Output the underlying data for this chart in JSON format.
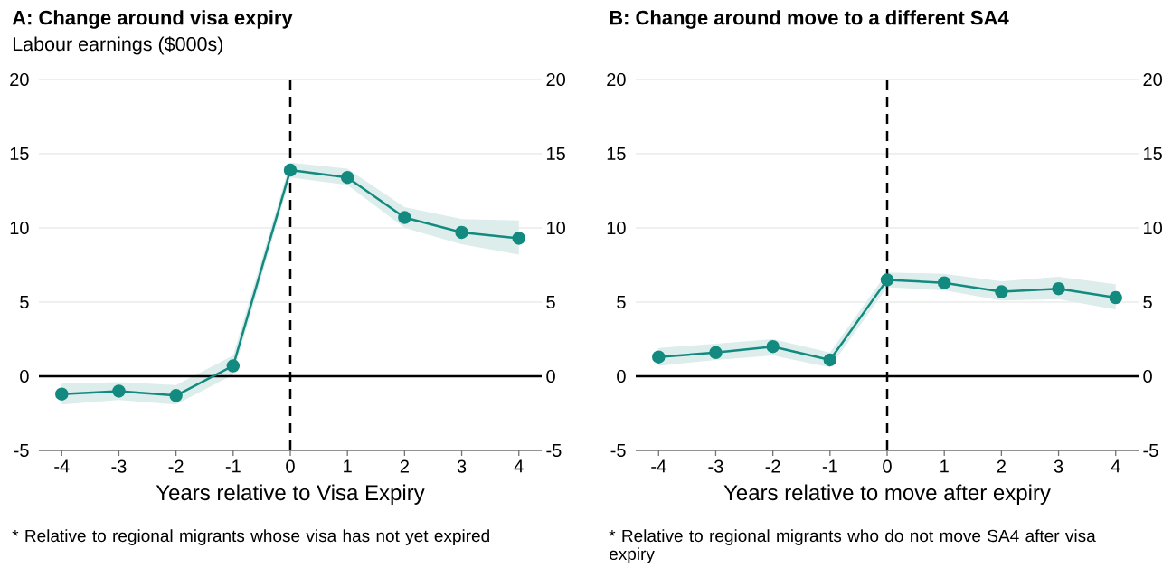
{
  "chart_data": [
    {
      "type": "line",
      "title": "A: Change around visa expiry",
      "ylabel": "Labour earnings ($000s)",
      "xlabel": "Years relative to Visa Expiry",
      "x": [
        -4,
        -3,
        -2,
        -1,
        0,
        1,
        2,
        3,
        4
      ],
      "series": [
        {
          "color": "#138a7f",
          "values": [
            -1.2,
            -1.0,
            -1.3,
            0.7,
            13.9,
            13.4,
            10.7,
            9.7,
            9.3
          ],
          "lower": [
            -1.9,
            -1.6,
            -1.9,
            0.1,
            13.4,
            12.9,
            10.0,
            8.9,
            8.2
          ],
          "upper": [
            -0.5,
            -0.4,
            -0.6,
            1.4,
            14.4,
            14.0,
            11.4,
            10.6,
            10.5
          ]
        }
      ],
      "xlim": [
        -4.4,
        4.4
      ],
      "xticks": [
        -4,
        -3,
        -2,
        -1,
        0,
        1,
        2,
        3,
        4
      ],
      "ylim": [
        -5,
        20
      ],
      "yticks": [
        -5,
        0,
        5,
        10,
        15,
        20
      ],
      "y2lim": [
        -5,
        20
      ],
      "y2ticks": [
        -5,
        0,
        5,
        10,
        15,
        20
      ],
      "grid": "y",
      "marker": "circle",
      "line_style": "solid",
      "ref_lines": [
        {
          "axis": "x",
          "value": 0,
          "color": "#000000",
          "line_style": "dashed"
        },
        {
          "axis": "y",
          "value": 0,
          "color": "#000000",
          "line_style": "solid"
        }
      ],
      "annotations": [
        "* Relative to regional migrants whose visa has not yet expired"
      ]
    },
    {
      "type": "line",
      "title": "B: Change around move to a different SA4",
      "xlabel": "Years relative to move after expiry",
      "x": [
        -4,
        -3,
        -2,
        -1,
        0,
        1,
        2,
        3,
        4
      ],
      "series": [
        {
          "color": "#138a7f",
          "values": [
            1.3,
            1.6,
            2.0,
            1.1,
            6.5,
            6.3,
            5.7,
            5.9,
            5.3
          ],
          "lower": [
            0.7,
            1.1,
            1.4,
            0.6,
            6.0,
            5.8,
            5.1,
            5.2,
            4.5
          ],
          "upper": [
            1.9,
            2.2,
            2.5,
            1.6,
            7.0,
            6.9,
            6.4,
            6.7,
            6.2
          ]
        }
      ],
      "xlim": [
        -4.4,
        4.4
      ],
      "xticks": [
        -4,
        -3,
        -2,
        -1,
        0,
        1,
        2,
        3,
        4
      ],
      "ylim": [
        -5,
        20
      ],
      "yticks": [
        -5,
        0,
        5,
        10,
        15,
        20
      ],
      "y2lim": [
        -5,
        20
      ],
      "y2ticks": [
        -5,
        0,
        5,
        10,
        15,
        20
      ],
      "grid": "y",
      "marker": "circle",
      "line_style": "solid",
      "ref_lines": [
        {
          "axis": "x",
          "value": 0,
          "color": "#000000",
          "line_style": "dashed"
        },
        {
          "axis": "y",
          "value": 0,
          "color": "#000000",
          "line_style": "solid"
        }
      ],
      "annotations": [
        "* Relative to regional migrants who do not move SA4 after visa expiry"
      ]
    }
  ]
}
